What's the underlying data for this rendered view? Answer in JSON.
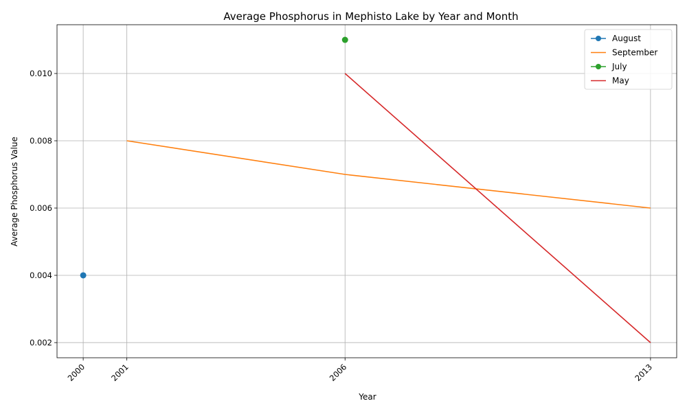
{
  "chart_data": {
    "type": "line",
    "title": "Average Phosphorus in Mephisto Lake by Year and Month",
    "xlabel": "Year",
    "ylabel": "Average Phosphorus Value",
    "xlim": [
      1999.4,
      2013.6
    ],
    "ylim": [
      0.00155,
      0.01145
    ],
    "x_ticks": [
      2000,
      2001,
      2006,
      2013
    ],
    "y_ticks": [
      0.002,
      0.004,
      0.006,
      0.008,
      0.01
    ],
    "y_tick_labels": [
      "0.002",
      "0.004",
      "0.006",
      "0.008",
      "0.010"
    ],
    "grid": true,
    "legend_position": "top-right",
    "series": [
      {
        "name": "August",
        "color": "#1f77b4",
        "marker": true,
        "x": [
          2000
        ],
        "values": [
          0.004
        ]
      },
      {
        "name": "September",
        "color": "#ff7f0e",
        "marker": false,
        "x": [
          2001,
          2006,
          2013
        ],
        "values": [
          0.008,
          0.007,
          0.006
        ]
      },
      {
        "name": "July",
        "color": "#2ca02c",
        "marker": true,
        "x": [
          2006
        ],
        "values": [
          0.011
        ]
      },
      {
        "name": "May",
        "color": "#d62728",
        "marker": false,
        "x": [
          2006,
          2013
        ],
        "values": [
          0.01,
          0.002
        ]
      }
    ]
  }
}
